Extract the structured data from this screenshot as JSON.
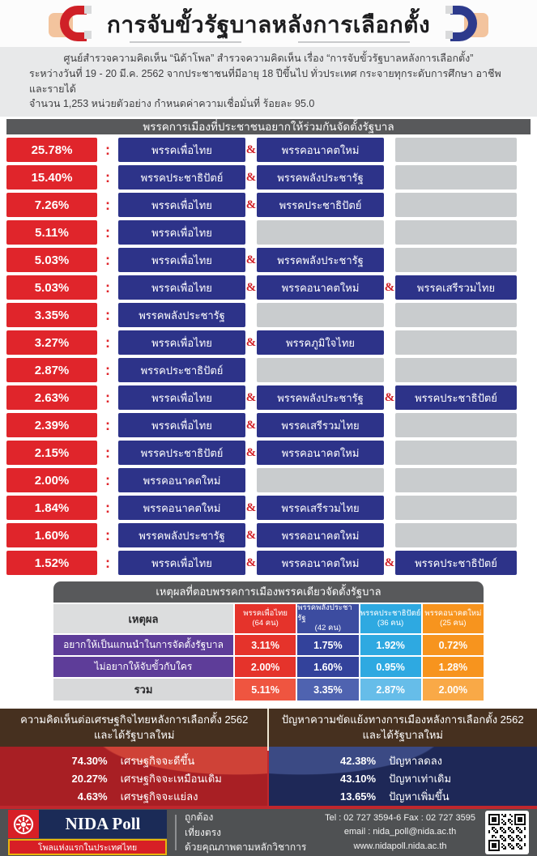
{
  "title": "การจับขั้วรัฐบาลหลังการเลือกตั้ง",
  "intro": {
    "line1": "ศูนย์สำรวจความคิดเห็น “นิด้าโพล” สำรวจความคิดเห็น เรื่อง “การจับขั้วรัฐบาลหลังการเลือกตั้ง”",
    "line2": "ระหว่างวันที่ 19 - 20 มี.ค. 2562 จากประชาชนที่มีอายุ 18 ปีขึ้นไป ทั่วประเทศ กระจายทุกระดับการศึกษา อาชีพ และรายได้",
    "line3": "จำนวน 1,253 หน่วยตัวอย่าง กำหนดค่าความเชื่อมั่นที่ ร้อยละ 95.0"
  },
  "coalition": {
    "header": "พรรคการเมืองที่ประชาชนอยากให้ร่วมกันจัดตั้งรัฐบาล",
    "separator_colon": ":",
    "separator_amp": "&",
    "rows": [
      {
        "percent": "25.78%",
        "parties": [
          "พรรคเพื่อไทย",
          "พรรคอนาคตใหม่"
        ]
      },
      {
        "percent": "15.40%",
        "parties": [
          "พรรคประชาธิปัตย์",
          "พรรคพลังประชารัฐ"
        ]
      },
      {
        "percent": "7.26%",
        "parties": [
          "พรรคเพื่อไทย",
          "พรรคประชาธิปัตย์"
        ]
      },
      {
        "percent": "5.11%",
        "parties": [
          "พรรคเพื่อไทย"
        ]
      },
      {
        "percent": "5.03%",
        "parties": [
          "พรรคเพื่อไทย",
          "พรรคพลังประชารัฐ"
        ]
      },
      {
        "percent": "5.03%",
        "parties": [
          "พรรคเพื่อไทย",
          "พรรคอนาคตใหม่",
          "พรรคเสรีรวมไทย"
        ]
      },
      {
        "percent": "3.35%",
        "parties": [
          "พรรคพลังประชารัฐ"
        ]
      },
      {
        "percent": "3.27%",
        "parties": [
          "พรรคเพื่อไทย",
          "พรรคภูมิใจไทย"
        ]
      },
      {
        "percent": "2.87%",
        "parties": [
          "พรรคประชาธิปัตย์"
        ]
      },
      {
        "percent": "2.63%",
        "parties": [
          "พรรคเพื่อไทย",
          "พรรคพลังประชารัฐ",
          "พรรคประชาธิปัตย์"
        ]
      },
      {
        "percent": "2.39%",
        "parties": [
          "พรรคเพื่อไทย",
          "พรรคเสรีรวมไทย"
        ]
      },
      {
        "percent": "2.15%",
        "parties": [
          "พรรคประชาธิปัตย์",
          "พรรคอนาคตใหม่"
        ]
      },
      {
        "percent": "2.00%",
        "parties": [
          "พรรคอนาคตใหม่"
        ]
      },
      {
        "percent": "1.84%",
        "parties": [
          "พรรคอนาคตใหม่",
          "พรรคเสรีรวมไทย"
        ]
      },
      {
        "percent": "1.60%",
        "parties": [
          "พรรคพลังประชารัฐ",
          "พรรคอนาคตใหม่"
        ]
      },
      {
        "percent": "1.52%",
        "parties": [
          "พรรคเพื่อไทย",
          "พรรคอนาคตใหม่",
          "พรรคประชาธิปัตย์"
        ]
      }
    ]
  },
  "reason_table": {
    "title": "เหตุผลที่ตอบพรรคการเมืองพรรคเดียวจัดตั้งรัฐบาล",
    "label_header": "เหตุผล",
    "columns": [
      {
        "name": "พรรคเพื่อไทย",
        "count": "(64 คน)",
        "header_color": "#e5332b",
        "body_color": "#e5332b",
        "total_color": "#ef5540"
      },
      {
        "name": "พรรคพลังประชารัฐ",
        "count": "(42 คน)",
        "header_color": "#3c4ca0",
        "body_color": "#33429b",
        "total_color": "#4f63b0"
      },
      {
        "name": "พรรคประชาธิปัตย์",
        "count": "(36 คน)",
        "header_color": "#2ea9e1",
        "body_color": "#2ea9e1",
        "total_color": "#66bde9"
      },
      {
        "name": "พรรคอนาคตใหม่",
        "count": "(25 คน)",
        "header_color": "#f7941e",
        "body_color": "#f7941e",
        "total_color": "#f9a947"
      }
    ],
    "rows": [
      {
        "label": "อยากให้เป็นแกนนำในการจัดตั้งรัฐบาล",
        "values": [
          "3.11%",
          "1.75%",
          "1.92%",
          "0.72%"
        ]
      },
      {
        "label": "ไม่อยากให้จับขั้วกับใคร",
        "values": [
          "2.00%",
          "1.60%",
          "0.95%",
          "1.28%"
        ]
      }
    ],
    "total_row": {
      "label": "รวม",
      "values": [
        "5.11%",
        "3.35%",
        "2.87%",
        "2.00%"
      ]
    }
  },
  "economy_panel": {
    "title_line1": "ความคิดเห็นต่อเศรษฐกิจไทยหลังการเลือกตั้ง 2562",
    "title_line2": "และได้รัฐบาลใหม่",
    "items": [
      {
        "percent": "74.30%",
        "label": "เศรษฐกิจจะดีขึ้น"
      },
      {
        "percent": "20.27%",
        "label": "เศรษฐกิจจะเหมือนเดิม"
      },
      {
        "percent": "4.63%",
        "label": "เศรษฐกิจจะแย่ลง"
      }
    ]
  },
  "conflict_panel": {
    "title_line1": "ปัญหาความขัดแย้งทางการเมืองหลังการเลือกตั้ง 2562",
    "title_line2": "และได้รัฐบาลใหม่",
    "items": [
      {
        "percent": "42.38%",
        "label": "ปัญหาลดลง"
      },
      {
        "percent": "43.10%",
        "label": "ปัญหาเท่าเดิม"
      },
      {
        "percent": "13.65%",
        "label": "ปัญหาเพิ่มขึ้น"
      }
    ]
  },
  "footer": {
    "logo_title": "NIDA Poll",
    "logo_subtitle": "โพลแห่งแรกในประเทศไทย",
    "slogans": [
      "ถูกต้อง",
      "เที่ยงตรง",
      "ด้วยคุณภาพตามหลักวิชาการ"
    ],
    "contact": {
      "tel": "Tel : 02 727 3594-6 Fax : 02 727 3595",
      "email": "email : nida_poll@nida.ac.th",
      "web": "www.nidapoll.nida.ac.th"
    }
  },
  "colors": {
    "accent_red": "#e0252b",
    "party_navy": "#2d3389",
    "placeholder_gray": "#c9ccce",
    "section_bar_gray": "#58595b",
    "reason_label_purple": "#5e3d99",
    "panel_header_brown": "#46301f",
    "economy_body_red": "#a81f24",
    "conflict_body_navy": "#1e2857"
  },
  "chart_data": [
    {
      "type": "bar",
      "title": "พรรคการเมืองที่ประชาชนอยากให้ร่วมกันจัดตั้งรัฐบาล",
      "categories": [
        "พรรคเพื่อไทย & พรรคอนาคตใหม่",
        "พรรคประชาธิปัตย์ & พรรคพลังประชารัฐ",
        "พรรคเพื่อไทย & พรรคประชาธิปัตย์",
        "พรรคเพื่อไทย",
        "พรรคเพื่อไทย & พรรคพลังประชารัฐ",
        "พรรคเพื่อไทย & พรรคอนาคตใหม่ & พรรคเสรีรวมไทย",
        "พรรคพลังประชารัฐ",
        "พรรคเพื่อไทย & พรรคภูมิใจไทย",
        "พรรคประชาธิปัตย์",
        "พรรคเพื่อไทย & พรรคพลังประชารัฐ & พรรคประชาธิปัตย์",
        "พรรคเพื่อไทย & พรรคเสรีรวมไทย",
        "พรรคประชาธิปัตย์ & พรรคอนาคตใหม่",
        "พรรคอนาคตใหม่",
        "พรรคอนาคตใหม่ & พรรคเสรีรวมไทย",
        "พรรคพลังประชารัฐ & พรรคอนาคตใหม่",
        "พรรคเพื่อไทย & พรรคอนาคตใหม่ & พรรคประชาธิปัตย์"
      ],
      "values": [
        25.78,
        15.4,
        7.26,
        5.11,
        5.03,
        5.03,
        3.35,
        3.27,
        2.87,
        2.63,
        2.39,
        2.15,
        2.0,
        1.84,
        1.6,
        1.52
      ],
      "unit": "%"
    },
    {
      "type": "table",
      "title": "เหตุผลที่ตอบพรรคการเมืองพรรคเดียวจัดตั้งรัฐบาล",
      "columns": [
        "เหตุผล",
        "พรรคเพื่อไทย (64 คน)",
        "พรรคพลังประชารัฐ (42 คน)",
        "พรรคประชาธิปัตย์ (36 คน)",
        "พรรคอนาคตใหม่ (25 คน)"
      ],
      "rows": [
        [
          "อยากให้เป็นแกนนำในการจัดตั้งรัฐบาล",
          3.11,
          1.75,
          1.92,
          0.72
        ],
        [
          "ไม่อยากให้จับขั้วกับใคร",
          2.0,
          1.6,
          0.95,
          1.28
        ],
        [
          "รวม",
          5.11,
          3.35,
          2.87,
          2.0
        ]
      ],
      "unit": "%"
    },
    {
      "type": "bar",
      "title": "ความคิดเห็นต่อเศรษฐกิจไทยหลังการเลือกตั้ง 2562 และได้รัฐบาลใหม่",
      "categories": [
        "เศรษฐกิจจะดีขึ้น",
        "เศรษฐกิจจะเหมือนเดิม",
        "เศรษฐกิจจะแย่ลง"
      ],
      "values": [
        74.3,
        20.27,
        4.63
      ],
      "unit": "%"
    },
    {
      "type": "bar",
      "title": "ปัญหาความขัดแย้งทางการเมืองหลังการเลือกตั้ง 2562 และได้รัฐบาลใหม่",
      "categories": [
        "ปัญหาลดลง",
        "ปัญหาเท่าเดิม",
        "ปัญหาเพิ่มขึ้น"
      ],
      "values": [
        42.38,
        43.1,
        13.65
      ],
      "unit": "%"
    }
  ]
}
